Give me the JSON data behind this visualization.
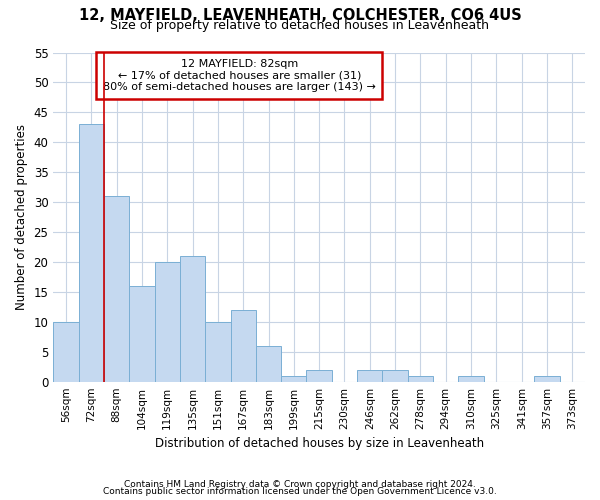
{
  "title1": "12, MAYFIELD, LEAVENHEATH, COLCHESTER, CO6 4US",
  "title2": "Size of property relative to detached houses in Leavenheath",
  "xlabel": "Distribution of detached houses by size in Leavenheath",
  "ylabel": "Number of detached properties",
  "footer1": "Contains HM Land Registry data © Crown copyright and database right 2024.",
  "footer2": "Contains public sector information licensed under the Open Government Licence v3.0.",
  "categories": [
    "56sqm",
    "72sqm",
    "88sqm",
    "104sqm",
    "119sqm",
    "135sqm",
    "151sqm",
    "167sqm",
    "183sqm",
    "199sqm",
    "215sqm",
    "230sqm",
    "246sqm",
    "262sqm",
    "278sqm",
    "294sqm",
    "310sqm",
    "325sqm",
    "341sqm",
    "357sqm",
    "373sqm"
  ],
  "values": [
    10,
    43,
    31,
    16,
    20,
    21,
    10,
    12,
    6,
    1,
    2,
    0,
    2,
    2,
    1,
    0,
    1,
    0,
    0,
    1,
    0
  ],
  "bar_color": "#c5d9f0",
  "bar_edge_color": "#7aafd4",
  "grid_color": "#c8d4e4",
  "annotation_line1": "12 MAYFIELD: 82sqm",
  "annotation_line2": "← 17% of detached houses are smaller (31)",
  "annotation_line3": "80% of semi-detached houses are larger (143) →",
  "annotation_box_color": "#ffffff",
  "annotation_box_edge": "#cc0000",
  "vline_x": 1.5,
  "vline_color": "#cc0000",
  "ylim": [
    0,
    55
  ],
  "yticks": [
    0,
    5,
    10,
    15,
    20,
    25,
    30,
    35,
    40,
    45,
    50,
    55
  ],
  "background_color": "#ffffff"
}
